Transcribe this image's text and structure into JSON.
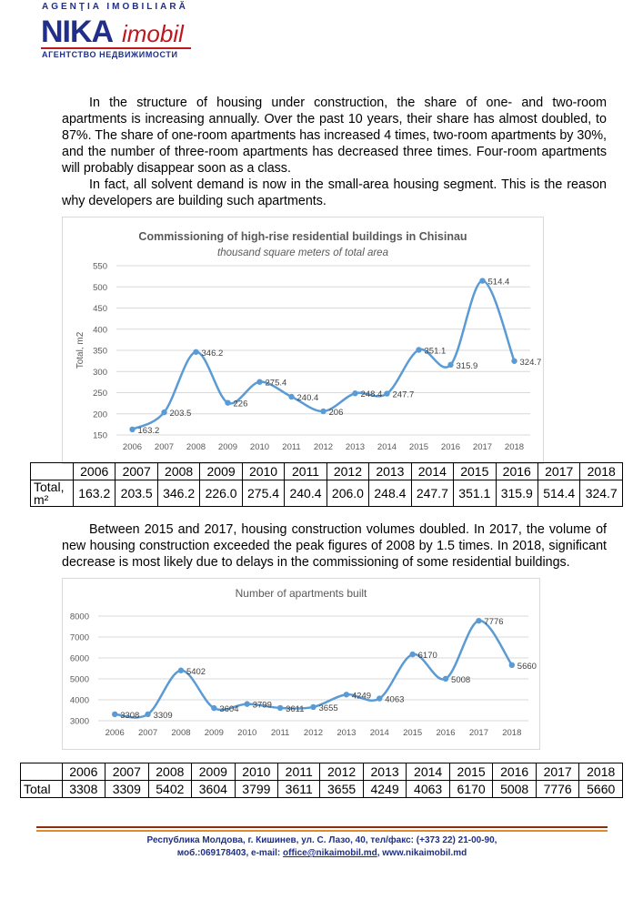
{
  "header": {
    "agency": "AGENŢIA IMOBILIARĂ",
    "brand": "NIKA",
    "brand_suffix": "imobil",
    "agency_ru": "АГЕНТСТВО НЕДВИЖИМОСТИ"
  },
  "paragraphs": [
    "In the structure of housing under construction, the share of one- and two-room apartments is increasing annually. Over the past 10 years, their share has almost doubled, to 87%. The share of one-room apartments has increased 4 times, two-room apartments by 30%, and the number of three-room apartments has decreased three times. Four-room apartments will probably disappear soon as a class.",
    "In fact, all solvent demand is now in the small-area housing segment. This is the reason why developers are building such apartments.",
    "Between 2015 and 2017, housing construction volumes doubled. In 2017, the volume of new housing construction exceeded the peak figures of 2008 by 1.5 times. In 2018, significant decrease is most likely due to delays in the commissioning of some residential buildings."
  ],
  "chart_data": [
    {
      "type": "line",
      "smooth": true,
      "markers": true,
      "data_labels": true,
      "grid": true,
      "title": "Commissioning of high-rise residential buildings in Chisinau",
      "subtitle": "thousand square meters of total area",
      "ylabel": "Total, m2",
      "categories": [
        "2006",
        "2007",
        "2008",
        "2009",
        "2010",
        "2011",
        "2012",
        "2013",
        "2014",
        "2015",
        "2016",
        "2017",
        "2018"
      ],
      "values": [
        163.2,
        203.5,
        346.2,
        226,
        275.4,
        240.4,
        206,
        248.4,
        247.7,
        351.1,
        315.9,
        514.4,
        324.7
      ],
      "color": "#5b9bd5",
      "ylim": [
        150,
        550
      ],
      "yticks": [
        150,
        200,
        250,
        300,
        350,
        400,
        450,
        500,
        550
      ]
    },
    {
      "type": "line",
      "smooth": true,
      "markers": true,
      "data_labels": true,
      "grid": true,
      "title": "Number of apartments built",
      "categories": [
        "2006",
        "2007",
        "2008",
        "2009",
        "2010",
        "2011",
        "2012",
        "2013",
        "2014",
        "2015",
        "2016",
        "2017",
        "2018"
      ],
      "values": [
        3308,
        3309,
        5402,
        3604,
        3799,
        3611,
        3655,
        4249,
        4063,
        6170,
        5008,
        7776,
        5660
      ],
      "color": "#5b9bd5",
      "ylim": [
        3000,
        8000
      ],
      "yticks": [
        3000,
        4000,
        5000,
        6000,
        7000,
        8000
      ]
    }
  ],
  "tables": [
    {
      "header": [
        "2006",
        "2007",
        "2008",
        "2009",
        "2010",
        "2011",
        "2012",
        "2013",
        "2014",
        "2015",
        "2016",
        "2017",
        "2018"
      ],
      "row_label": "Total, m²",
      "cells": [
        "163.2",
        "203.5",
        "346.2",
        "226.0",
        "275.4",
        "240.4",
        "206.0",
        "248.4",
        "247.7",
        "351.1",
        "315.9",
        "514.4",
        "324.7"
      ]
    },
    {
      "header": [
        "2006",
        "2007",
        "2008",
        "2009",
        "2010",
        "2011",
        "2012",
        "2013",
        "2014",
        "2015",
        "2016",
        "2017",
        "2018"
      ],
      "row_label": "Total",
      "cells": [
        "3308",
        "3309",
        "5402",
        "3604",
        "3799",
        "3611",
        "3655",
        "4249",
        "4063",
        "6170",
        "5008",
        "7776",
        "5660"
      ]
    }
  ],
  "footer": {
    "line1": "Республика Молдова, г. Кишинев, ул. С. Лазо, 40, тел/факс: (+373 22) 21-00-90,",
    "line2_start": "моб.:069178403, e-mail: ",
    "email": "office@nikaimobil.md",
    "line2_end": ", www.nikaimobil.md"
  }
}
